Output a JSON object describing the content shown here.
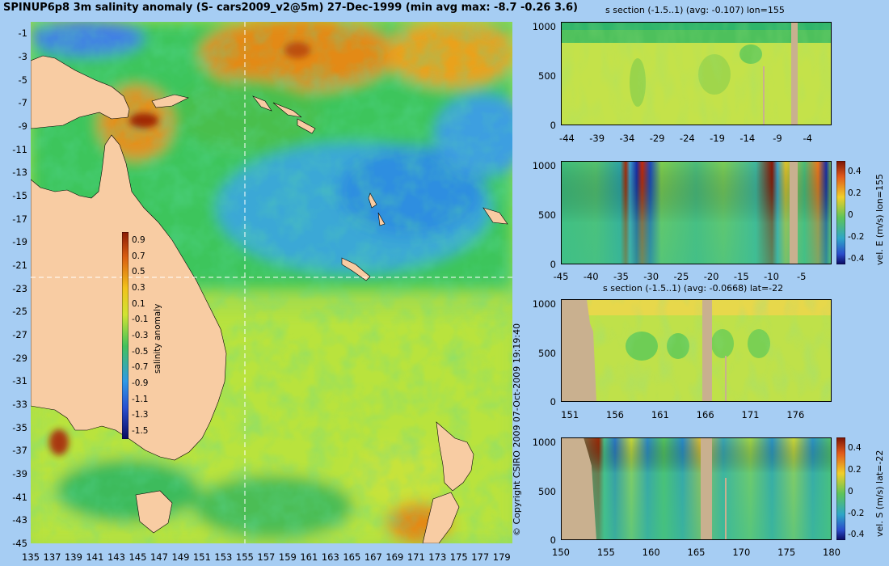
{
  "title": "SPINUP6p8 3m salinity anomaly (S- cars2009_v2@5m) 27-Dec-1999 (min avg max: -8.7 -0.26 3.6)",
  "copyright": "© Copyright CSIRO 2009   07-Oct-2009 19:19:40",
  "colors": {
    "background": "#a6cdf3",
    "land": "#f8cca3",
    "section_land": "#c9b08f",
    "crosshair": "#ffffff"
  },
  "chart_data": [
    {
      "id": "map",
      "type": "heatmap",
      "title": "SPINUP6p8 3m salinity anomaly (S- cars2009_v2@5m) 27-Dec-1999 (min avg max: -8.7 -0.26 3.6)",
      "x_ticks": [
        "135",
        "137",
        "139",
        "141",
        "143",
        "145",
        "147",
        "149",
        "151",
        "153",
        "155",
        "157",
        "159",
        "161",
        "163",
        "165",
        "167",
        "169",
        "171",
        "173",
        "175",
        "177",
        "179"
      ],
      "y_ticks": [
        "-1",
        "-3",
        "-5",
        "-7",
        "-9",
        "-11",
        "-13",
        "-15",
        "-17",
        "-19",
        "-21",
        "-23",
        "-25",
        "-27",
        "-29",
        "-31",
        "-33",
        "-35",
        "-37",
        "-39",
        "-41",
        "-43",
        "-45"
      ],
      "xlim": [
        135,
        180
      ],
      "ylim": [
        -45,
        0
      ],
      "crosshair": {
        "lon": 155,
        "lat": -22
      },
      "colorbar": {
        "label": "salinity anomaly",
        "ticks": [
          "0.9",
          "0.7",
          "0.5",
          "0.3",
          "0.1",
          "-0.1",
          "-0.3",
          "-0.5",
          "-0.7",
          "-0.9",
          "-1.1",
          "-1.3",
          "-1.5"
        ],
        "range": [
          -1.6,
          1.0
        ]
      }
    },
    {
      "id": "s_section_lon155",
      "type": "heatmap",
      "title": "s section (-1.5..1) (avg: -0.107) lon=155",
      "x_ticks": [
        "-44",
        "-39",
        "-34",
        "-29",
        "-24",
        "-19",
        "-14",
        "-9",
        "-4"
      ],
      "y_ticks": [
        "0",
        "500",
        "1000"
      ],
      "xlim": [
        -45,
        0
      ],
      "ylim": [
        1050,
        0
      ]
    },
    {
      "id": "vel_e_lon155",
      "type": "heatmap",
      "title": "",
      "x_ticks": [
        "-45",
        "-40",
        "-35",
        "-30",
        "-25",
        "-20",
        "-15",
        "-10",
        "-5"
      ],
      "y_ticks": [
        "0",
        "500",
        "1000"
      ],
      "xlim": [
        -45,
        0
      ],
      "ylim": [
        1050,
        0
      ],
      "colorbar": {
        "label": "vel. E (m/s) lon=155",
        "ticks": [
          "0.4",
          "0.2",
          "0",
          "-0.2",
          "-0.4"
        ],
        "range": [
          -0.45,
          0.5
        ]
      }
    },
    {
      "id": "s_section_lat22",
      "type": "heatmap",
      "title": "s section (-1.5..1) (avg: -0.0668) lat=-22",
      "x_ticks": [
        "151",
        "156",
        "161",
        "166",
        "171",
        "176"
      ],
      "y_ticks": [
        "0",
        "500",
        "1000"
      ],
      "xlim": [
        150,
        180
      ],
      "ylim": [
        1050,
        0
      ]
    },
    {
      "id": "vel_s_lat22",
      "type": "heatmap",
      "title": "",
      "x_ticks": [
        "150",
        "155",
        "160",
        "165",
        "170",
        "175",
        "180"
      ],
      "y_ticks": [
        "0",
        "500",
        "1000"
      ],
      "xlim": [
        150,
        180
      ],
      "ylim": [
        1050,
        0
      ],
      "colorbar": {
        "label": "vel. S (m/s) lat=-22",
        "ticks": [
          "0.4",
          "0.2",
          "0",
          "-0.2",
          "-0.4"
        ],
        "range": [
          -0.45,
          0.5
        ]
      }
    }
  ]
}
